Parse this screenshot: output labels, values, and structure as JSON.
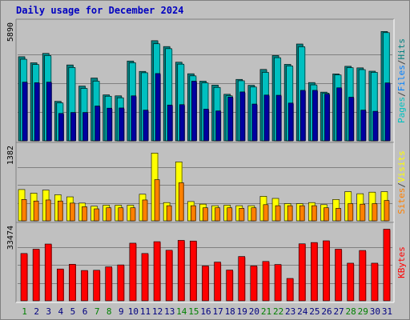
{
  "chart_data": {
    "title": "Daily usage for December 2024",
    "type": "bar",
    "categories": [
      "1",
      "2",
      "3",
      "4",
      "5",
      "6",
      "7",
      "8",
      "9",
      "10",
      "11",
      "12",
      "13",
      "14",
      "15",
      "16",
      "17",
      "18",
      "19",
      "20",
      "21",
      "22",
      "23",
      "24",
      "25",
      "26",
      "27",
      "28",
      "29",
      "30",
      "31"
    ],
    "weekend_days": [
      1,
      7,
      8,
      14,
      15,
      21,
      22,
      28,
      29
    ],
    "panels": [
      {
        "id": "top",
        "max_label": "5890",
        "ymax": 5890,
        "axis_label": [
          "Pages",
          "/",
          "Files",
          "/",
          "Hits"
        ],
        "axis_label_colors": [
          "#00c0c0",
          "#404040",
          "#0080ff",
          "#404040",
          "#008080"
        ],
        "series": [
          {
            "name": "Hits",
            "color": "#008080",
            "values": [
              4300,
              3990,
              4470,
              2020,
              3880,
              2800,
              3210,
              2350,
              2300,
              4080,
              3550,
              5120,
              4820,
              4020,
              3430,
              3050,
              2850,
              2380,
              3140,
              2840,
              3650,
              4360,
              3910,
              4950,
              2980,
              2490,
              3420,
              3810,
              3730,
              3560,
              5590
            ]
          },
          {
            "name": "Files",
            "color": "#00c0c0",
            "values": [
              4170,
              3900,
              4360,
              1940,
              3750,
              2680,
              3050,
              2280,
              2200,
              3990,
              3480,
              4960,
              4710,
              3920,
              3320,
              2960,
              2730,
              2300,
              3070,
              2750,
              3500,
              4250,
              3830,
              4810,
              2860,
              2440,
              3370,
              3740,
              3640,
              3500,
              5530
            ]
          },
          {
            "name": "Pages",
            "color": "#0000a0",
            "values": [
              3000,
              2970,
              3000,
              1400,
              1450,
              1450,
              1780,
              1670,
              1680,
              2300,
              1570,
              3440,
              1830,
              1850,
              3050,
              1620,
              1530,
              2240,
              2500,
              1880,
              2340,
              2330,
              1930,
              2580,
              2580,
              2390,
              2710,
              2230,
              1570,
              1510,
              2960
            ]
          }
        ]
      },
      {
        "id": "middle",
        "max_label": "1382",
        "ymax": 1382,
        "axis_label": [
          "Sites",
          "/",
          "Visits"
        ],
        "axis_label_colors": [
          "#ff8000",
          "#404040",
          "#ffff00"
        ],
        "series": [
          {
            "name": "Visits",
            "color": "#ffff00",
            "values": [
              600,
              530,
              590,
              500,
              460,
              340,
              280,
              300,
              300,
              300,
              510,
              1300,
              350,
              1130,
              370,
              320,
              290,
              300,
              290,
              290,
              470,
              430,
              330,
              330,
              350,
              310,
              410,
              560,
              520,
              550,
              560
            ]
          },
          {
            "name": "Sites",
            "color": "#ff8000",
            "values": [
              410,
              380,
              400,
              380,
              340,
              270,
              230,
              250,
              250,
              250,
              400,
              790,
              290,
              730,
              290,
              250,
              250,
              250,
              240,
              250,
              310,
              290,
              290,
              290,
              290,
              250,
              240,
              330,
              320,
              330,
              390
            ]
          }
        ]
      },
      {
        "id": "bottom",
        "max_label": "33474",
        "ymax": 33474,
        "axis_label": [
          "KBytes"
        ],
        "axis_label_colors": [
          "#ff0000"
        ],
        "series": [
          {
            "name": "KBytes",
            "color": "#ff0000",
            "values": [
              22000,
              24000,
              26400,
              14800,
              17000,
              14100,
              14200,
              15800,
              16700,
              26800,
              22000,
              27500,
              23500,
              28100,
              27800,
              16200,
              18000,
              14300,
              20600,
              16200,
              18300,
              16900,
              10400,
              26500,
              27100,
              27900,
              24000,
              17500,
              23400,
              17500,
              33300
            ]
          }
        ]
      }
    ]
  }
}
